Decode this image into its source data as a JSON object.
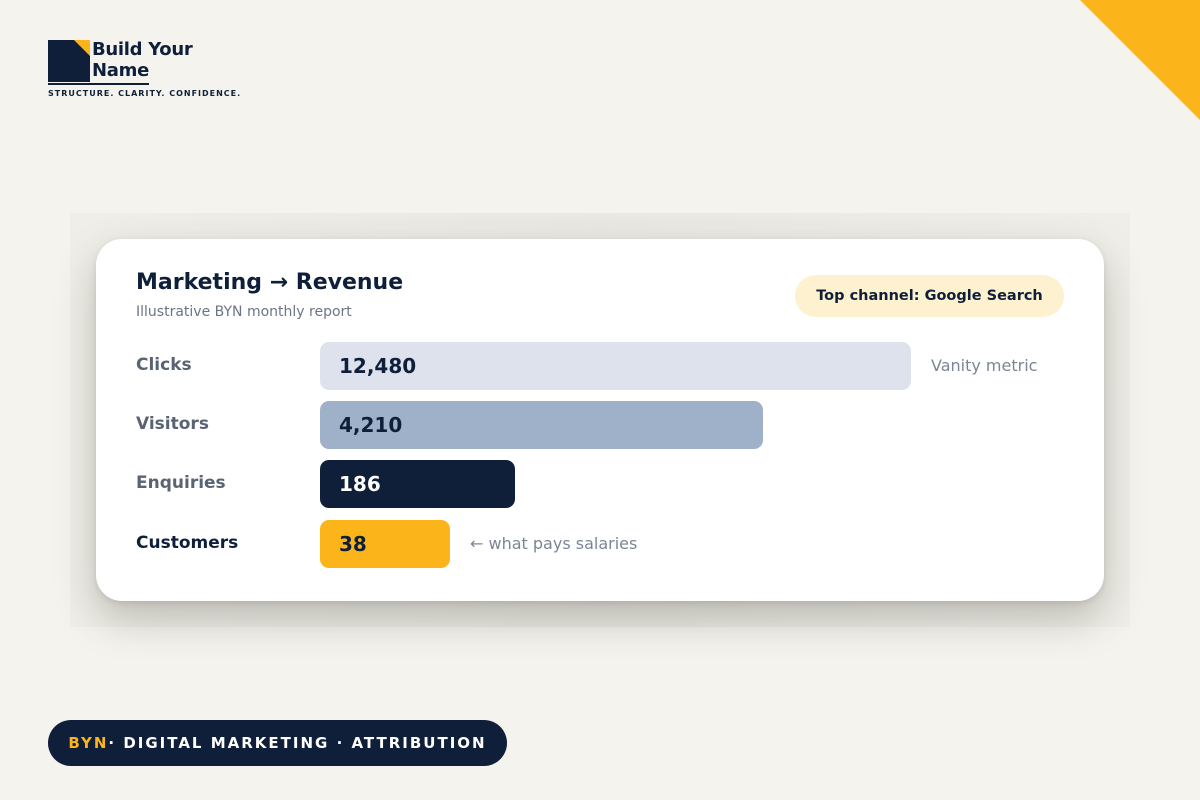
{
  "brand": {
    "logo_line1": "Build Your",
    "logo_line2": "Name",
    "tagline": "STRUCTURE. CLARITY. CONFIDENCE.",
    "accent_color": "#fbb51b",
    "navy_color": "#0f1f3a"
  },
  "card": {
    "title": "Marketing → Revenue",
    "subtitle": "Illustrative BYN monthly report",
    "badge": "Top channel: Google Search"
  },
  "chart_data": {
    "type": "bar",
    "orientation": "horizontal",
    "categories": [
      "Clicks",
      "Visitors",
      "Enquiries",
      "Customers"
    ],
    "values": [
      12480,
      4210,
      186,
      38
    ],
    "value_labels": [
      "12,480",
      "4,210",
      "186",
      "38"
    ],
    "bar_colors": [
      "#dde2ed",
      "#9fb0c9",
      "#0f1f3a",
      "#fbb51b"
    ],
    "label_colors": [
      "#0f1f3a",
      "#0f1f3a",
      "#ffffff",
      "#0f1f3a"
    ],
    "annotations": [
      {
        "category": "Clicks",
        "text": "Vanity metric"
      },
      {
        "category": "Customers",
        "text": "← what pays salaries"
      }
    ],
    "title": "Marketing → Revenue",
    "subtitle": "Illustrative BYN monthly report",
    "scale": "non-linear (illustrative)"
  },
  "footer": {
    "brand": "BYN",
    "text": " · DIGITAL MARKETING · ATTRIBUTION"
  }
}
